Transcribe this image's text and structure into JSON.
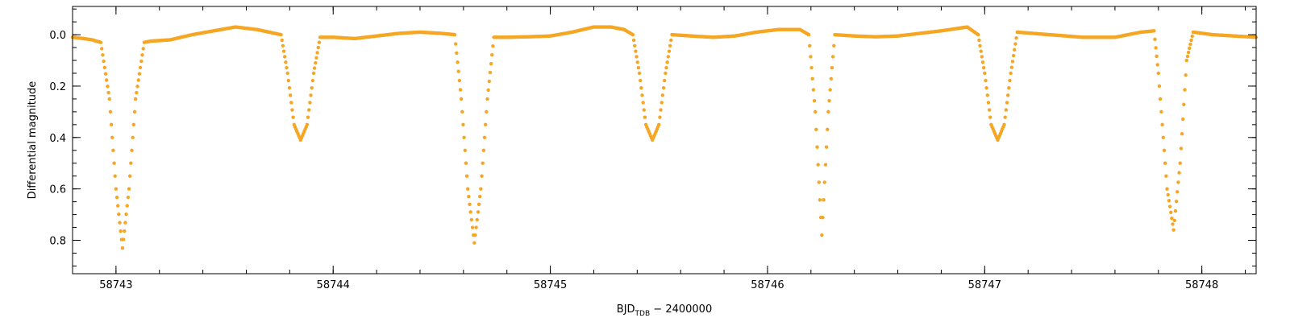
{
  "chart_data": {
    "type": "scatter",
    "title": "",
    "xlabel": {
      "main": "BJD",
      "sub": "TDB",
      "rest": " − 2400000"
    },
    "ylabel": "Differential magnitude",
    "xlim": [
      58742.8,
      58748.25
    ],
    "ylim": [
      0.93,
      -0.11
    ],
    "y_inverted": true,
    "grid": false,
    "legend": "none",
    "marker_color": "#F5A623",
    "x_ticks": [
      58743,
      58744,
      58745,
      58746,
      58747,
      58748
    ],
    "x_tick_labels": [
      "58743",
      "58744",
      "58745",
      "58746",
      "58747",
      "58748"
    ],
    "y_ticks": [
      0.0,
      0.2,
      0.4,
      0.6,
      0.8
    ],
    "y_tick_labels": [
      "0.0",
      "0.2",
      "0.4",
      "0.6",
      "0.8"
    ],
    "series": [
      {
        "values": [
          [
            58742.8,
            0.01
          ],
          [
            58742.85,
            0.015
          ],
          [
            58742.89,
            0.02
          ],
          [
            58742.93,
            0.03
          ],
          [
            58742.97,
            0.25
          ],
          [
            58743.0,
            0.6
          ],
          [
            58743.03,
            0.83
          ],
          [
            58743.06,
            0.6
          ],
          [
            58743.09,
            0.25
          ],
          [
            58743.13,
            0.03
          ],
          [
            58743.16,
            0.025
          ],
          [
            58743.25,
            0.02
          ],
          [
            58743.35,
            0.0
          ],
          [
            58743.45,
            -0.015
          ],
          [
            58743.55,
            -0.03
          ],
          [
            58743.65,
            -0.02
          ],
          [
            58743.76,
            0.0
          ],
          [
            58743.79,
            0.15
          ],
          [
            58743.82,
            0.35
          ],
          [
            58743.85,
            0.41
          ],
          [
            58743.88,
            0.35
          ],
          [
            58743.91,
            0.15
          ],
          [
            58743.94,
            0.01
          ],
          [
            58744.0,
            0.01
          ],
          [
            58744.1,
            0.015
          ],
          [
            58744.2,
            0.005
          ],
          [
            58744.3,
            -0.005
          ],
          [
            58744.4,
            -0.01
          ],
          [
            58744.5,
            -0.005
          ],
          [
            58744.56,
            0.0
          ],
          [
            58744.59,
            0.25
          ],
          [
            58744.62,
            0.6
          ],
          [
            58744.65,
            0.81
          ],
          [
            58744.68,
            0.6
          ],
          [
            58744.71,
            0.25
          ],
          [
            58744.74,
            0.01
          ],
          [
            58744.8,
            0.01
          ],
          [
            58744.9,
            0.008
          ],
          [
            58745.0,
            0.005
          ],
          [
            58745.1,
            -0.01
          ],
          [
            58745.2,
            -0.03
          ],
          [
            58745.28,
            -0.03
          ],
          [
            58745.34,
            -0.02
          ],
          [
            58745.38,
            0.0
          ],
          [
            58745.41,
            0.15
          ],
          [
            58745.44,
            0.35
          ],
          [
            58745.47,
            0.41
          ],
          [
            58745.5,
            0.35
          ],
          [
            58745.53,
            0.15
          ],
          [
            58745.56,
            0.0
          ],
          [
            58745.65,
            0.005
          ],
          [
            58745.75,
            0.01
          ],
          [
            58745.85,
            0.005
          ],
          [
            58745.95,
            -0.01
          ],
          [
            58746.05,
            -0.02
          ],
          [
            58746.15,
            -0.02
          ],
          [
            58746.19,
            0.0
          ],
          [
            58746.22,
            0.3
          ],
          [
            58746.25,
            0.78
          ],
          [
            58746.28,
            0.3
          ],
          [
            58746.31,
            0.0
          ],
          [
            58746.4,
            0.005
          ],
          [
            58746.5,
            0.008
          ],
          [
            58746.6,
            0.005
          ],
          [
            58746.7,
            -0.005
          ],
          [
            58746.8,
            -0.015
          ],
          [
            58746.92,
            -0.03
          ],
          [
            58746.97,
            0.0
          ],
          [
            58747.0,
            0.15
          ],
          [
            58747.03,
            0.35
          ],
          [
            58747.06,
            0.41
          ],
          [
            58747.09,
            0.35
          ],
          [
            58747.12,
            0.15
          ],
          [
            58747.15,
            -0.01
          ],
          [
            58747.3,
            0.0
          ],
          [
            58747.45,
            0.01
          ],
          [
            58747.6,
            0.01
          ],
          [
            58747.72,
            -0.01
          ],
          [
            58747.78,
            -0.015
          ],
          [
            58747.8,
            0.15
          ],
          [
            58747.84,
            0.6
          ],
          [
            58747.87,
            0.76
          ],
          [
            58747.9,
            0.5
          ],
          [
            58747.93,
            0.1
          ],
          [
            58747.96,
            -0.01
          ],
          [
            58748.05,
            0.0
          ],
          [
            58748.15,
            0.005
          ],
          [
            58748.25,
            0.01
          ]
        ]
      }
    ]
  }
}
